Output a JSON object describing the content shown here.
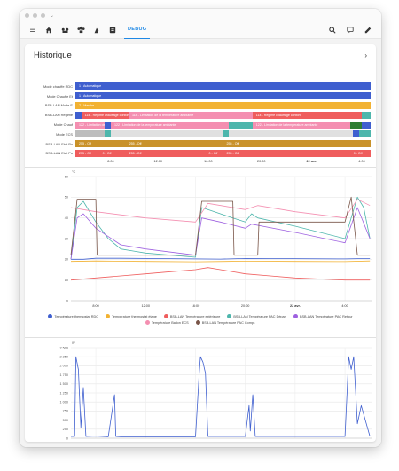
{
  "app": {
    "tab_label": "DEBUG"
  },
  "card": {
    "title": "Historique"
  },
  "timeline": {
    "rows": [
      {
        "label": "Mode chauffe RDC",
        "segments": [
          {
            "text": "1 - Automatique",
            "color": "#3f5fcf"
          }
        ]
      },
      {
        "label": "Mode Chauffe Et",
        "segments": [
          {
            "text": "1 - Automatique",
            "color": "#3f5fcf"
          }
        ]
      },
      {
        "label": "BSB-LAN Mode E",
        "segments": [
          {
            "text": "7 - Marche",
            "color": "#f2b233"
          }
        ]
      },
      {
        "label": "BSB-LAN Regime",
        "segments": [
          {
            "text": "114 - Regime chauffage confort",
            "color": "#ef5d5d"
          },
          {
            "text": "118 - Limitation de la temperature ambiante",
            "color": "#f48fb1"
          }
        ]
      },
      {
        "label": "Mode Chauf",
        "segments": [
          {
            "text": "122 - Limitation de la temperature ambiante",
            "color": "#f48fb1"
          }
        ]
      },
      {
        "label": "Mode ECS",
        "segments": []
      },
      {
        "label": "BSB-LAN Etat Po",
        "segments": [
          {
            "text": "255 - Off",
            "color": "#c9922a"
          },
          {
            "text": "255 - Off",
            "color": "#c9922a"
          },
          {
            "text": "255 - Off",
            "color": "#c9922a"
          }
        ]
      },
      {
        "label": "BSB-LAN Etat Po",
        "segments": [
          {
            "text": "255 - Off",
            "color": "#ef5d5d"
          },
          {
            "text": "0 - Off",
            "color": "#ef5d5d"
          },
          {
            "text": "255 - Off",
            "color": "#ef5d5d"
          },
          {
            "text": "0 - Off",
            "color": "#ef5d5d"
          },
          {
            "text": "255 - Off",
            "color": "#ef5d5d"
          },
          {
            "text": "0 - Off",
            "color": "#ef5d5d"
          }
        ]
      }
    ],
    "ticks": [
      "8:00",
      "12:00",
      "16:00",
      "20:00",
      "22 avr.",
      "4:00"
    ]
  },
  "chart_data": [
    {
      "type": "line",
      "ylabel": "°C",
      "ylim": [
        0,
        60
      ],
      "yticks": [
        "0",
        "10",
        "20",
        "30",
        "40",
        "50",
        "60"
      ],
      "x_ticks": [
        "8:00",
        "12:00",
        "16:00",
        "20:00",
        "22 avr.",
        "4:00"
      ],
      "x_hours": [
        8,
        12,
        16,
        20,
        24,
        28
      ],
      "series": [
        {
          "name": "Température thermostat RDC",
          "color": "#3f5fcf",
          "x": [
            6,
            7,
            8,
            10,
            14,
            18,
            20,
            24,
            28,
            30
          ],
          "values": [
            20,
            20,
            20.5,
            20.5,
            20.3,
            20.1,
            20.4,
            20.3,
            20.2,
            20.4
          ]
        },
        {
          "name": "Température thermostat étage",
          "color": "#f2b233",
          "x": [
            6,
            8,
            12,
            16,
            20,
            24,
            28,
            30
          ],
          "values": [
            19,
            19.2,
            19,
            18.8,
            19.1,
            19,
            18.9,
            19.2
          ]
        },
        {
          "name": "BSB-LAN Température extérieure",
          "color": "#ef5d5d",
          "x": [
            6,
            8,
            10,
            12,
            14,
            16,
            17,
            18,
            20,
            22,
            24,
            26,
            28,
            30
          ],
          "values": [
            10,
            11,
            12,
            13,
            14,
            15,
            16,
            15,
            13,
            12,
            11,
            10.5,
            10,
            10
          ]
        },
        {
          "name": "BSB-LAN Température PAC Départ",
          "color": "#4db6ac",
          "x": [
            6,
            6.5,
            7,
            8,
            9,
            10,
            11,
            12,
            16,
            16.5,
            17,
            19,
            20,
            20.5,
            21,
            24,
            28,
            29,
            29.5,
            30
          ],
          "values": [
            20,
            45,
            48,
            38,
            30,
            25,
            24,
            23,
            21,
            45,
            44,
            40,
            38,
            42,
            40,
            36,
            30,
            50,
            45,
            30
          ]
        },
        {
          "name": "BSB-LAN Température PAC Retour",
          "color": "#9e61e0",
          "x": [
            6,
            6.5,
            7,
            8,
            10,
            12,
            16,
            16.5,
            18,
            20,
            20.5,
            24,
            28,
            29,
            30
          ],
          "values": [
            20,
            40,
            42,
            35,
            27,
            25,
            22,
            40,
            38,
            35,
            37,
            33,
            28,
            45,
            30
          ]
        },
        {
          "name": "Température Ballon ECS",
          "color": "#f48fb1",
          "x": [
            6,
            7,
            8,
            12,
            16,
            17,
            20,
            21,
            24,
            28,
            29,
            30
          ],
          "values": [
            45,
            44,
            43,
            40,
            38,
            47,
            44,
            46,
            43,
            40,
            49,
            46
          ]
        },
        {
          "name": "BSB-LAN Température PAC Compr.",
          "color": "#795548",
          "x": [
            6,
            6.5,
            7,
            8,
            8.1,
            12,
            16,
            16.5,
            17,
            19,
            19.1,
            21,
            21.1,
            28,
            28.5,
            29,
            30
          ],
          "values": [
            22,
            49,
            49,
            49,
            22,
            22,
            22,
            48,
            48,
            48,
            22,
            22,
            38,
            38,
            50,
            22,
            22
          ]
        }
      ]
    },
    {
      "type": "line",
      "ylabel": "W",
      "ylim": [
        0,
        2500
      ],
      "yticks": [
        "0",
        "250",
        "500",
        "750",
        "1 000",
        "1 250",
        "1 500",
        "1 750",
        "2 000",
        "2 250",
        "2 500"
      ],
      "x_ticks": [
        "8:00",
        "12:00",
        "16:00",
        "20:00",
        "22 avr.",
        "4:00"
      ],
      "x_hours": [
        8,
        12,
        16,
        20,
        24,
        28
      ],
      "series": [
        {
          "name": "Puissance PAC",
          "color": "#3f5fcf",
          "x": [
            6,
            6.3,
            6.4,
            6.6,
            6.8,
            7.0,
            7.2,
            8.0,
            9.0,
            9.5,
            9.6,
            10.0,
            12.0,
            14.0,
            16.0,
            16.3,
            16.4,
            16.6,
            16.8,
            17.0,
            20.0,
            20.3,
            20.4,
            20.6,
            20.8,
            24.0,
            28.0,
            28.3,
            28.5,
            28.7,
            29.0,
            29.3,
            30.0
          ],
          "values": [
            50,
            50,
            2250,
            1900,
            300,
            1400,
            50,
            60,
            40,
            1200,
            50,
            40,
            40,
            40,
            40,
            1800,
            2250,
            2100,
            1800,
            50,
            50,
            900,
            200,
            1200,
            50,
            50,
            50,
            2250,
            1900,
            2250,
            400,
            900,
            50
          ]
        }
      ]
    }
  ]
}
